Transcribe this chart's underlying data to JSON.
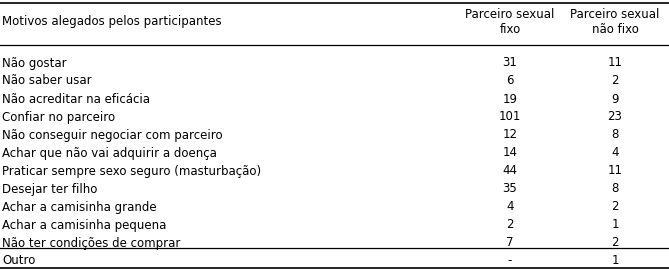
{
  "header_col": "Motivos alegados pelos participantes",
  "header_col1": "Parceiro sexual\nfixo",
  "header_col2": "Parceiro sexual\nnão fixo",
  "rows": [
    [
      "Não gostar",
      "31",
      "11"
    ],
    [
      "Não saber usar",
      "6",
      "2"
    ],
    [
      "Não acreditar na eficácia",
      "19",
      "9"
    ],
    [
      "Confiar no parceiro",
      "101",
      "23"
    ],
    [
      "Não conseguir negociar com parceiro",
      "12",
      "8"
    ],
    [
      "Achar que não vai adquirir a doença",
      "14",
      "4"
    ],
    [
      "Praticar sempre sexo seguro (masturbação)",
      "44",
      "11"
    ],
    [
      "Desejar ter filho",
      "35",
      "8"
    ],
    [
      "Achar a camisinha grande",
      "4",
      "2"
    ],
    [
      "Achar a camisinha pequena",
      "2",
      "1"
    ],
    [
      "Não ter condições de comprar",
      "7",
      "2"
    ],
    [
      "Outro",
      "-",
      "1"
    ]
  ],
  "bg_color": "#ffffff",
  "text_color": "#000000",
  "font_size": 8.5,
  "fig_width": 6.69,
  "fig_height": 2.74,
  "dpi": 100
}
